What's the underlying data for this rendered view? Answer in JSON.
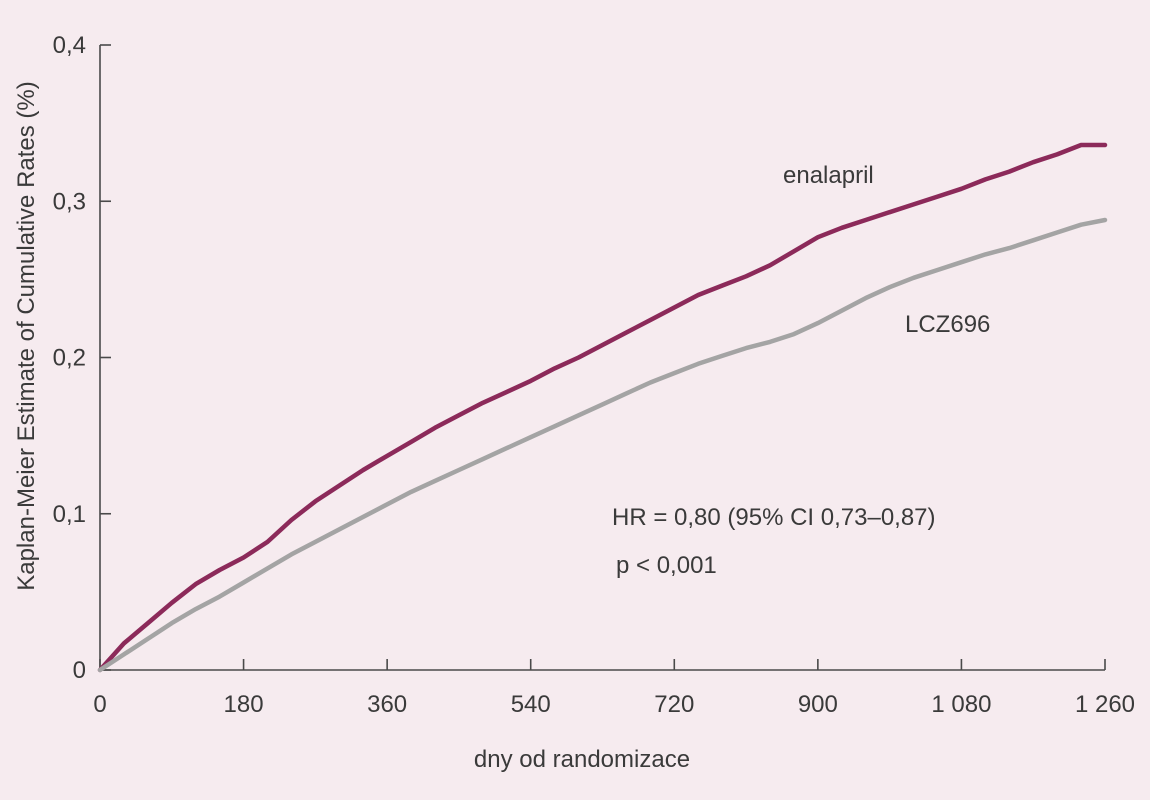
{
  "chart_data": {
    "type": "line",
    "xlabel": "dny od randomizace",
    "ylabel": "Kaplan-Meier Estimate of Cumulative Rates (%)",
    "xlim": [
      0,
      1260
    ],
    "ylim": [
      0,
      0.4
    ],
    "x_ticks": [
      0,
      180,
      360,
      540,
      720,
      900,
      1080,
      1260
    ],
    "x_tick_labels": [
      "0",
      "180",
      "360",
      "540",
      "720",
      "900",
      "1 080",
      "1 260"
    ],
    "y_ticks": [
      0,
      0.1,
      0.2,
      0.3,
      0.4
    ],
    "y_tick_labels": [
      "0",
      "0,1",
      "0,2",
      "0,3",
      "0,4"
    ],
    "grid": false,
    "series": [
      {
        "name": "enalapril",
        "color": "#8c2a5a",
        "x": [
          0,
          30,
          60,
          90,
          120,
          150,
          180,
          210,
          240,
          270,
          300,
          330,
          360,
          390,
          420,
          450,
          480,
          510,
          540,
          570,
          600,
          630,
          660,
          690,
          720,
          750,
          780,
          810,
          840,
          870,
          900,
          930,
          960,
          990,
          1020,
          1050,
          1080,
          1110,
          1140,
          1170,
          1200,
          1230,
          1260
        ],
        "values": [
          0,
          0.017,
          0.03,
          0.043,
          0.055,
          0.064,
          0.072,
          0.082,
          0.096,
          0.108,
          0.118,
          0.128,
          0.137,
          0.146,
          0.155,
          0.163,
          0.171,
          0.178,
          0.185,
          0.193,
          0.2,
          0.208,
          0.216,
          0.224,
          0.232,
          0.24,
          0.246,
          0.252,
          0.259,
          0.268,
          0.277,
          0.283,
          0.288,
          0.293,
          0.298,
          0.303,
          0.308,
          0.314,
          0.319,
          0.325,
          0.33,
          0.336,
          0.336
        ]
      },
      {
        "name": "LCZ696",
        "color": "#a4a4a4",
        "x": [
          0,
          30,
          60,
          90,
          120,
          150,
          180,
          210,
          240,
          270,
          300,
          330,
          360,
          390,
          420,
          450,
          480,
          510,
          540,
          570,
          600,
          630,
          660,
          690,
          720,
          750,
          780,
          810,
          840,
          870,
          900,
          930,
          960,
          990,
          1020,
          1050,
          1080,
          1110,
          1140,
          1170,
          1200,
          1230,
          1260
        ],
        "values": [
          0,
          0.01,
          0.02,
          0.03,
          0.039,
          0.047,
          0.056,
          0.065,
          0.074,
          0.082,
          0.09,
          0.098,
          0.106,
          0.114,
          0.121,
          0.128,
          0.135,
          0.142,
          0.149,
          0.156,
          0.163,
          0.17,
          0.177,
          0.184,
          0.19,
          0.196,
          0.201,
          0.206,
          0.21,
          0.215,
          0.222,
          0.23,
          0.238,
          0.245,
          0.251,
          0.256,
          0.261,
          0.266,
          0.27,
          0.275,
          0.28,
          0.285,
          0.288
        ]
      }
    ],
    "series_labels": [
      "enalapril",
      "LCZ696"
    ],
    "annotations": {
      "hr": "HR = 0,80 (95% CI 0,73–0,87)",
      "p": "p < 0,001"
    }
  }
}
